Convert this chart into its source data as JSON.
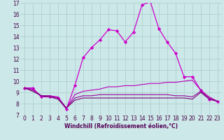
{
  "xlabel": "Windchill (Refroidissement éolien,°C)",
  "x": [
    0,
    1,
    2,
    3,
    4,
    5,
    6,
    7,
    8,
    9,
    10,
    11,
    12,
    13,
    14,
    15,
    16,
    17,
    18,
    19,
    20,
    21,
    22,
    23
  ],
  "series": [
    {
      "y": [
        9.4,
        9.4,
        8.6,
        8.6,
        8.5,
        7.5,
        9.6,
        12.1,
        13.0,
        13.7,
        14.6,
        14.5,
        13.5,
        14.4,
        16.8,
        17.1,
        14.7,
        13.5,
        12.5,
        10.4,
        10.4,
        9.2,
        8.4,
        8.2
      ],
      "color": "#cc00cc",
      "linewidth": 0.9,
      "marker": "D",
      "markersize": 2.2
    },
    {
      "y": [
        9.4,
        9.3,
        8.7,
        8.7,
        8.6,
        7.6,
        8.8,
        9.1,
        9.2,
        9.3,
        9.5,
        9.5,
        9.6,
        9.6,
        9.7,
        9.8,
        9.8,
        9.9,
        9.9,
        10.0,
        10.1,
        9.2,
        8.6,
        8.2
      ],
      "color": "#bb00bb",
      "linewidth": 0.8,
      "marker": null,
      "markersize": 0
    },
    {
      "y": [
        9.4,
        9.2,
        8.7,
        8.7,
        8.5,
        7.6,
        8.5,
        8.7,
        8.7,
        8.8,
        8.8,
        8.8,
        8.8,
        8.8,
        8.8,
        8.8,
        8.8,
        8.8,
        8.7,
        8.7,
        8.6,
        9.1,
        8.5,
        8.2
      ],
      "color": "#990099",
      "linewidth": 0.8,
      "marker": null,
      "markersize": 0
    },
    {
      "y": [
        9.4,
        9.1,
        8.7,
        8.6,
        8.4,
        7.6,
        8.3,
        8.5,
        8.5,
        8.5,
        8.5,
        8.5,
        8.5,
        8.5,
        8.5,
        8.5,
        8.5,
        8.5,
        8.5,
        8.5,
        8.4,
        9.0,
        8.4,
        8.2
      ],
      "color": "#770077",
      "linewidth": 0.8,
      "marker": null,
      "markersize": 0
    }
  ],
  "xlim": [
    -0.5,
    23.5
  ],
  "ylim": [
    7,
    17
  ],
  "yticks": [
    7,
    8,
    9,
    10,
    11,
    12,
    13,
    14,
    15,
    16,
    17
  ],
  "xticks": [
    0,
    1,
    2,
    3,
    4,
    5,
    6,
    7,
    8,
    9,
    10,
    11,
    12,
    13,
    14,
    15,
    16,
    17,
    18,
    19,
    20,
    21,
    22,
    23
  ],
  "bg_color": "#cce8e8",
  "grid_color": "#aacccc",
  "tick_fontsize": 5.5,
  "xlabel_fontsize": 5.5,
  "xlabel_color": "#550055"
}
